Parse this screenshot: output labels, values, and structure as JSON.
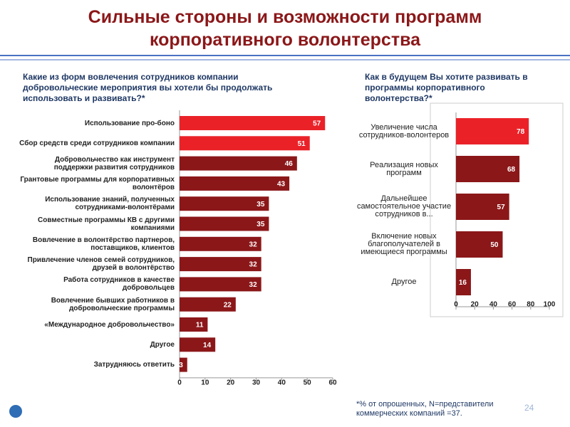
{
  "title": "Сильные стороны и возможности программ корпоративного волонтерства",
  "footnote": "*% от опрошенных, N=представители коммерческих компаний =37.",
  "page_number": "24",
  "chart_data": [
    {
      "type": "barh",
      "title": "Какие из форм вовлечения сотрудников компании добровольческие мероприятия вы хотели бы продолжать использовать и развивать?*",
      "categories": [
        "Использование про-боно",
        "Сбор средств среди сотрудников компании",
        "Добровольчество как инструмент поддержки развития сотрудников",
        "Грантовые программы для корпоративных волонтёров",
        "Использование знаний, полученных сотрудниками-волонтёрами",
        "Совместные программы КВ с другими компаниями",
        "Вовлечение в волонтёрство партнеров, поставщиков, клиентов",
        "Привлечение членов семей сотрудников, друзей в волонтёрство",
        "Работа сотрудников в качестве добровольцев",
        "Вовлечение бывших работников в добровольческие программы",
        "«Международное добровольчество»",
        "Другое",
        "Затрудняюсь ответить"
      ],
      "values": [
        57,
        51,
        46,
        43,
        35,
        35,
        32,
        32,
        32,
        22,
        11,
        14,
        3
      ],
      "colors": [
        "#ea2228",
        "#ea2228",
        "#8b1719",
        "#8b1719",
        "#8b1719",
        "#8b1719",
        "#8b1719",
        "#8b1719",
        "#8b1719",
        "#8b1719",
        "#8b1719",
        "#8b1719",
        "#8b1719"
      ],
      "xlim": [
        0,
        60
      ],
      "xticks": [
        0,
        10,
        20,
        30,
        40,
        50,
        60
      ]
    },
    {
      "type": "barh",
      "title": "Как в будущем Вы хотите развивать в программы корпоративного волонтерства?*",
      "categories": [
        "Увеличение числа сотрудников-волонтеров",
        "Реализация новых программ",
        "Дальнейшее самостоятельное участие сотрудников в...",
        "Включение новых благополучателей в имеющиеся программы",
        "Другое"
      ],
      "values": [
        78,
        68,
        57,
        50,
        16
      ],
      "colors": [
        "#ea2228",
        "#8b1719",
        "#8b1719",
        "#8b1719",
        "#8b1719"
      ],
      "xlim": [
        0,
        100
      ],
      "xticks": [
        0,
        20,
        40,
        60,
        80,
        100
      ]
    }
  ]
}
